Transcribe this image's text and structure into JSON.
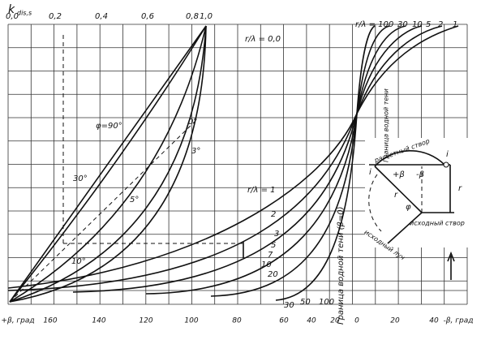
{
  "axis": {
    "y_label": "k",
    "y_sub": "dis,s",
    "top_ticks": [
      "0,0",
      "0,2",
      "0,4",
      "0,6",
      "0,8",
      "1,0"
    ],
    "bottom_ticks": [
      "+β, град",
      "160",
      "140",
      "120",
      "100",
      "80",
      "60",
      "40",
      "20",
      "0",
      "20",
      "40",
      "-β, град"
    ]
  },
  "annotations": {
    "r_lambda_top": "r/λ = 100",
    "top_30": "30",
    "top_10": "10",
    "top_5": "5",
    "top_2": "2",
    "top_1": "1",
    "r_lambda_zero": "r/λ = 0,0",
    "phi_90": "φ=90°",
    "deg_0": "0°",
    "deg_3": "3°",
    "deg_30": "30°",
    "deg_5": "5°",
    "deg_10": "10°",
    "r_lambda_one": "r/λ = 1",
    "c2": "2",
    "c3": "3",
    "c5": "5",
    "c7": "7",
    "c10": "10",
    "c20": "20",
    "b30": "30",
    "b50": "50",
    "b100": "100",
    "shadow_border": "Граница водной тени (β=0)"
  },
  "inset": {
    "shadow_border": "Граница водной тени",
    "design_section": "расчетный створ",
    "initial_section": "исходный створ",
    "initial_ray": "исходный луч",
    "i_left": "i",
    "i_right": "i",
    "r": "r",
    "r_right": "r",
    "phi": "φ",
    "plus_beta": "+β",
    "minus_beta": "-β"
  }
}
